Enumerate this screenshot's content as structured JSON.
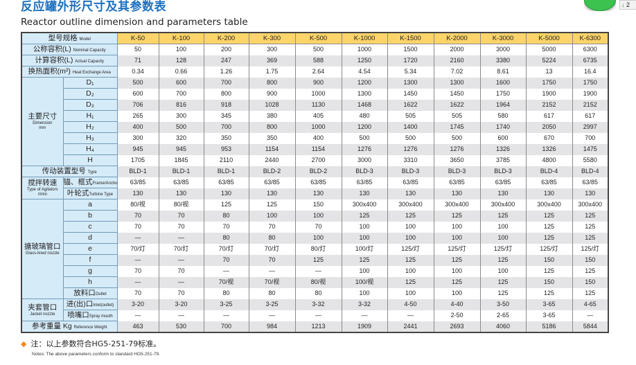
{
  "title": "反应罐外形尺寸及其参数表",
  "subtitle": "Reactor outline dimension and parameters table",
  "widget": {
    "color": "#3cc24e",
    "side_text": "2",
    "arrow_icon": "down-arrow-icon"
  },
  "colors": {
    "title": "#1b70c0",
    "label_bg": "#d6ebf8",
    "header_bg": "#fdd46a",
    "alt_row_bg": "#e4e4e6",
    "note_bullet": "#f08a1a"
  },
  "table": {
    "header": {
      "cn": "型号规格",
      "en": "Model"
    },
    "models": [
      "K-50",
      "K-100",
      "K-200",
      "K-300",
      "K-500",
      "K-1000",
      "K-1500",
      "K-2000",
      "K-3000",
      "K-5000",
      "K-6300"
    ],
    "rows": [
      {
        "cn": "公称容积(L)",
        "en": "Nominal Capacity",
        "values": [
          "50",
          "100",
          "200",
          "300",
          "500",
          "1000",
          "1500",
          "2000",
          "3000",
          "5000",
          "6300"
        ]
      },
      {
        "cn": "计算容积(L)",
        "en": "Actual Capacity",
        "values": [
          "71",
          "128",
          "247",
          "369",
          "588",
          "1250",
          "1720",
          "2160",
          "3380",
          "5224",
          "6735"
        ]
      },
      {
        "cn": "换热面积(m²)",
        "en": "Heat Exchange Area",
        "values": [
          "0.34",
          "0.66",
          "1.26",
          "1.75",
          "2.64",
          "4.54",
          "5.34",
          "7.02",
          "8.61",
          "13",
          "16.4"
        ]
      },
      {
        "group": {
          "cn": "主要尺寸",
          "en": "Dimension",
          "unit": "mm",
          "span": 8
        },
        "sub": "D₁",
        "values": [
          "500",
          "600",
          "700",
          "800",
          "900",
          "1200",
          "1300",
          "1300",
          "1600",
          "1750",
          "1750"
        ]
      },
      {
        "sub": "D₂",
        "values": [
          "600",
          "700",
          "800",
          "900",
          "1000",
          "1300",
          "1450",
          "1450",
          "1750",
          "1900",
          "1900"
        ]
      },
      {
        "sub": "D₃",
        "values": [
          "706",
          "816",
          "918",
          "1028",
          "1130",
          "1468",
          "1622",
          "1622",
          "1964",
          "2152",
          "2152"
        ]
      },
      {
        "sub": "H₁",
        "values": [
          "265",
          "300",
          "345",
          "380",
          "405",
          "480",
          "505",
          "505",
          "580",
          "617",
          "617"
        ]
      },
      {
        "sub": "H₂",
        "values": [
          "400",
          "500",
          "700",
          "800",
          "1000",
          "1200",
          "1400",
          "1745",
          "1740",
          "2050",
          "2997"
        ]
      },
      {
        "sub": "H₃",
        "values": [
          "300",
          "320",
          "350",
          "350",
          "400",
          "500",
          "500",
          "500",
          "600",
          "670",
          "700"
        ]
      },
      {
        "sub": "H₄",
        "values": [
          "945",
          "945",
          "953",
          "1154",
          "1154",
          "1276",
          "1276",
          "1276",
          "1326",
          "1326",
          "1475"
        ]
      },
      {
        "sub": "H",
        "values": [
          "1705",
          "1845",
          "2110",
          "2440",
          "2700",
          "3000",
          "3310",
          "3650",
          "3785",
          "4800",
          "5580"
        ]
      },
      {
        "cn": "传动装置型号",
        "en": "Type",
        "values": [
          "BLD-1",
          "BLD-1",
          "BLD-1",
          "BLD-2",
          "BLD-2",
          "BLD-3",
          "BLD-3",
          "BLD-3",
          "BLD-3",
          "BLD-4",
          "BLD-4"
        ]
      },
      {
        "group": {
          "cn": "搅拌转速",
          "en": "Type of Agitators",
          "unit": "r/min",
          "span": 2
        },
        "sub": "锚、框式",
        "sub_en": "Frame/Anchor Type",
        "values": [
          "63/85",
          "63/85",
          "63/85",
          "63/85",
          "63/85",
          "63/85",
          "63/85",
          "63/85",
          "63/85",
          "63/85",
          "63/85"
        ]
      },
      {
        "sub": "叶轮式",
        "sub_en": "Turbine Type",
        "values": [
          "130",
          "130",
          "130",
          "130",
          "130",
          "130",
          "130",
          "130",
          "130",
          "130",
          "130"
        ]
      },
      {
        "group": {
          "cn": "搪玻璃管口",
          "en": "Glass-lined nozzle",
          "unit": "",
          "span": 9
        },
        "sub": "a",
        "values": [
          "80/视",
          "80/视",
          "125",
          "125",
          "150",
          "300x400",
          "300x400",
          "300x400",
          "300x400",
          "300x400",
          "300x400"
        ]
      },
      {
        "sub": "b",
        "values": [
          "70",
          "70",
          "80",
          "100",
          "100",
          "125",
          "125",
          "125",
          "125",
          "125",
          "125"
        ]
      },
      {
        "sub": "c",
        "values": [
          "70",
          "70",
          "70",
          "70",
          "70",
          "100",
          "100",
          "100",
          "100",
          "125",
          "125"
        ]
      },
      {
        "sub": "d",
        "values": [
          "—",
          "—",
          "80",
          "80",
          "100",
          "100",
          "100",
          "100",
          "100",
          "125",
          "125"
        ]
      },
      {
        "sub": "e",
        "values": [
          "70/灯",
          "70/灯",
          "70/灯",
          "70/灯",
          "80/灯",
          "100/灯",
          "125/灯",
          "125/灯",
          "125/灯",
          "125/灯",
          "125/灯"
        ]
      },
      {
        "sub": "f",
        "values": [
          "—",
          "—",
          "70",
          "70",
          "125",
          "125",
          "125",
          "125",
          "125",
          "150",
          "150"
        ]
      },
      {
        "sub": "g",
        "values": [
          "70",
          "70",
          "—",
          "—",
          "—",
          "100",
          "100",
          "100",
          "100",
          "125",
          "125"
        ]
      },
      {
        "sub": "h",
        "values": [
          "—",
          "—",
          "70/视",
          "70/视",
          "80/视",
          "100/视",
          "125",
          "125",
          "125",
          "150",
          "150"
        ]
      },
      {
        "sub": "放料口",
        "sub_en": "Outlet",
        "values": [
          "70",
          "70",
          "80",
          "80",
          "80",
          "100",
          "100",
          "100",
          "125",
          "125",
          "125"
        ]
      },
      {
        "group": {
          "cn": "夹套管口",
          "en": "Jacket nozzle",
          "unit": "",
          "span": 2
        },
        "sub": "进(出)口",
        "sub_en": "Inlet(outlet)",
        "values": [
          "3-20",
          "3-20",
          "3-25",
          "3-25",
          "3-32",
          "3-32",
          "4-50",
          "4-40",
          "3-50",
          "3-65",
          "4-65"
        ]
      },
      {
        "sub": "喷嘴口",
        "sub_en": "Spray mouth",
        "values": [
          "—",
          "—",
          "—",
          "—",
          "—",
          "—",
          "—",
          "2-50",
          "2-65",
          "3-65",
          "—"
        ]
      },
      {
        "cn": "参考重量 Kg",
        "en": "Reference Weight",
        "values": [
          "463",
          "530",
          "700",
          "984",
          "1213",
          "1909",
          "2441",
          "2693",
          "4060",
          "5186",
          "5844"
        ]
      }
    ]
  },
  "notes": {
    "cn": "注：以上参数符合HG5-251-79标准。",
    "en": "Notes: The above parameters conform to standard HG5-251-79."
  }
}
